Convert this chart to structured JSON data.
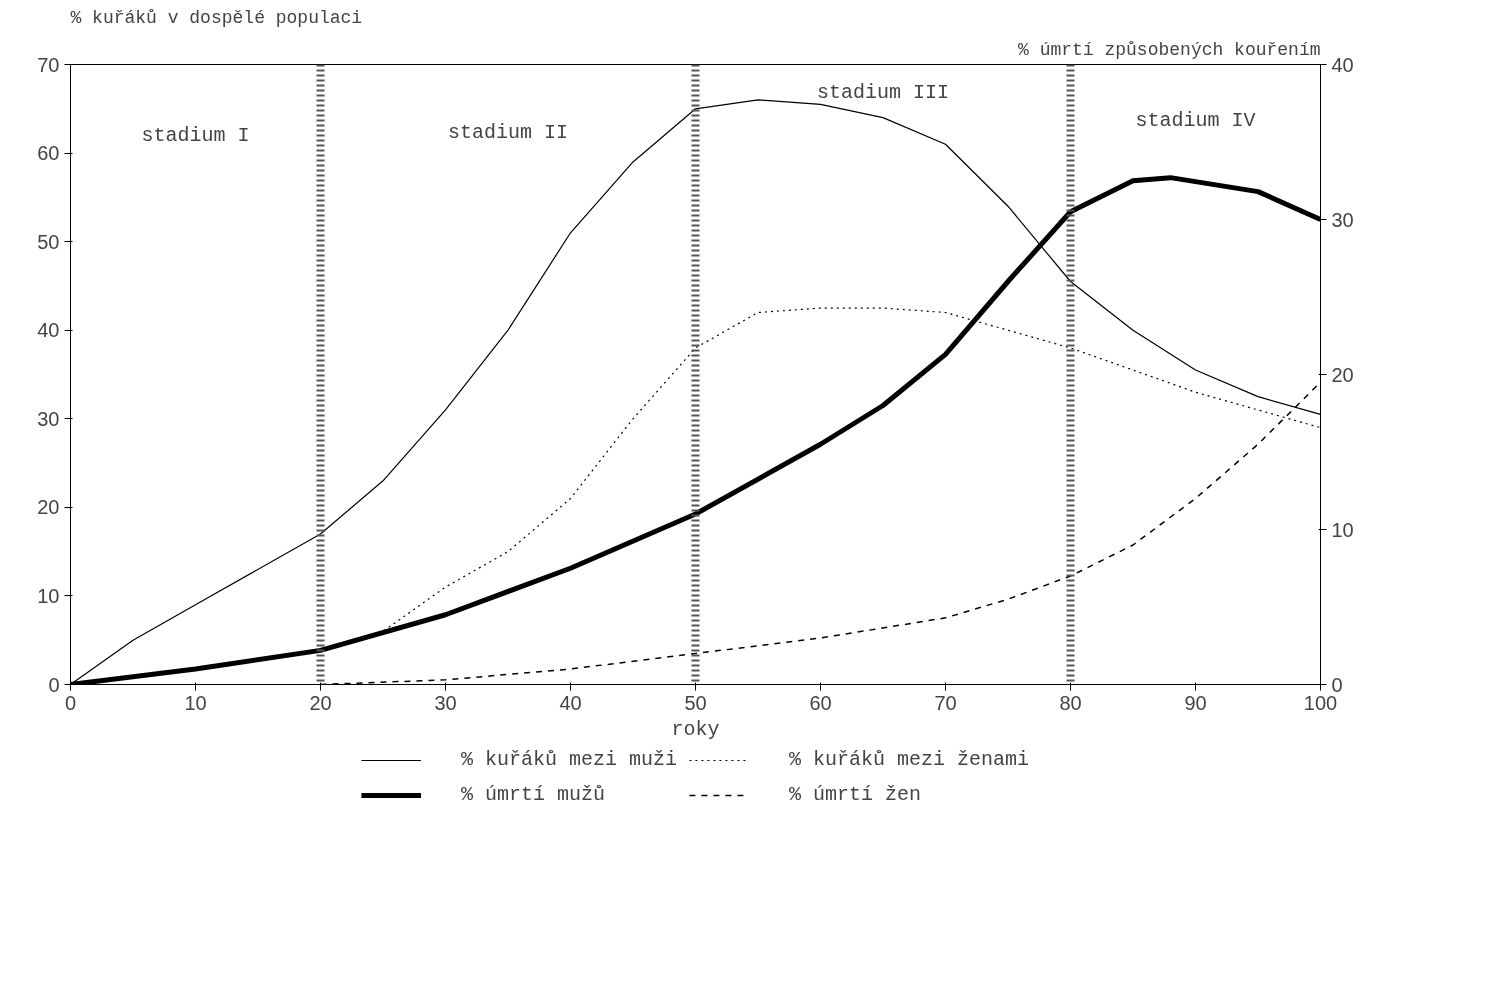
{
  "chart_data": {
    "type": "line",
    "xlabel": "roky",
    "ylabel": "% kuřáků v dospělé populaci",
    "y2label": "% úmrtí způsobených kouřením",
    "xlim": [
      0,
      100
    ],
    "xticks": [
      0,
      10,
      20,
      30,
      40,
      50,
      60,
      70,
      80,
      90,
      100
    ],
    "ylim": [
      0,
      70
    ],
    "yticks": [
      0,
      10,
      20,
      30,
      40,
      50,
      60,
      70
    ],
    "y2lim": [
      0,
      40
    ],
    "y2ticks": [
      0,
      10,
      20,
      30,
      40
    ],
    "grid": false,
    "legend": "bottom",
    "marker": "none",
    "series": [
      {
        "name": "% kuřáků mezi muži",
        "color": "#000000",
        "line_style": "solid",
        "x": [
          0,
          5,
          10,
          20,
          25,
          30,
          35,
          40,
          45,
          50,
          55,
          60,
          65,
          70,
          75,
          80,
          85,
          90,
          95,
          100
        ],
        "values": [
          0,
          5,
          9,
          17,
          23,
          31,
          40,
          51,
          59,
          65,
          66,
          65.5,
          64,
          61,
          54,
          45.5,
          40,
          35.5,
          32.5,
          30.5
        ]
      },
      {
        "name": "% kuřáků mezi ženami",
        "color": "#000000",
        "line_style": "dotted",
        "x": [
          20,
          25,
          30,
          35,
          40,
          45,
          50,
          55,
          60,
          65,
          70,
          75,
          80,
          85,
          90,
          95,
          100
        ],
        "values": [
          4,
          6,
          11,
          15,
          21,
          30,
          38,
          42,
          42.5,
          42.5,
          42,
          40,
          38,
          35.5,
          33,
          31,
          29
        ]
      },
      {
        "name": "% úmrtí mužů",
        "color": "#000000",
        "line_style": "solid",
        "axis": "y2",
        "x": [
          0,
          10,
          20,
          30,
          40,
          50,
          60,
          65,
          70,
          75,
          80,
          85,
          88,
          95,
          100
        ],
        "values": [
          0,
          1,
          2.2,
          4.5,
          7.5,
          11,
          15.5,
          18,
          21.3,
          26,
          30.5,
          32.5,
          32.7,
          31.8,
          30
        ]
      },
      {
        "name": "% úmrtí žen",
        "color": "#000000",
        "line_style": "dashed",
        "axis": "y2",
        "x": [
          20,
          30,
          40,
          50,
          60,
          70,
          75,
          80,
          85,
          90,
          95,
          100
        ],
        "values": [
          0,
          0.3,
          1,
          2,
          3,
          4.3,
          5.5,
          7,
          9,
          12,
          15.5,
          19.5
        ]
      }
    ],
    "ref_lines": [
      {
        "axis": "x",
        "value": 20,
        "line_style": "dashed",
        "color": "#555555"
      },
      {
        "axis": "x",
        "value": 50,
        "line_style": "dashed",
        "color": "#555555"
      },
      {
        "axis": "x",
        "value": 80,
        "line_style": "dashed",
        "color": "#555555"
      }
    ],
    "annotations": [
      "stadium I",
      "stadium II",
      "stadium III",
      "stadium IV"
    ]
  }
}
